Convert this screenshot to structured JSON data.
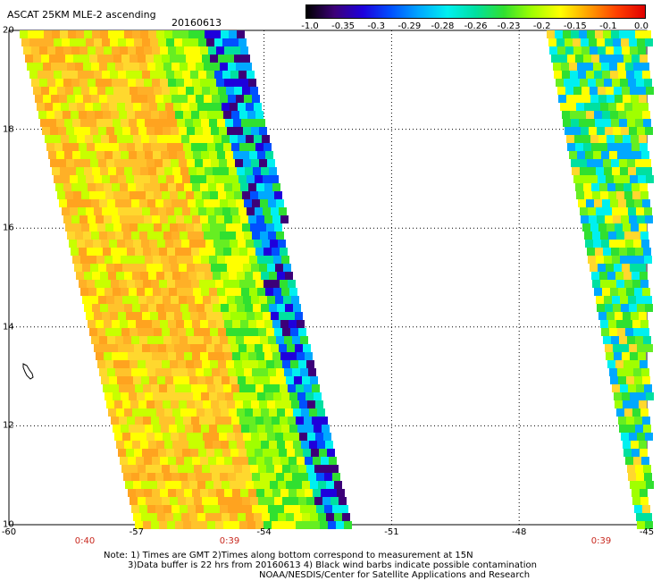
{
  "header": {
    "title": "ASCAT 25KM MLE-2 ascending",
    "date": "20160613"
  },
  "colorbar": {
    "ticks": [
      "-1.0",
      "-0.35",
      "-0.3",
      "-0.29",
      "-0.28",
      "-0.26",
      "-0.23",
      "-0.2",
      "-0.15",
      "-0.1",
      "0.0"
    ],
    "colors": [
      "#000000",
      "#3c0078",
      "#1e00dc",
      "#0050ff",
      "#00a8ff",
      "#00f0f0",
      "#00e0a0",
      "#30e030",
      "#a0ff00",
      "#ffff00",
      "#ffa000",
      "#ff4000",
      "#e00000"
    ]
  },
  "axes": {
    "lat_labels": [
      "20",
      "18",
      "16",
      "14",
      "12",
      "10"
    ],
    "lon_labels": [
      "-60",
      "-57",
      "-54",
      "-51",
      "-48",
      "-45"
    ],
    "time_labels": [
      "0:40",
      "0:39",
      "0:39"
    ]
  },
  "notes": {
    "line1": "Note: 1) Times are GMT 2)Times along bottom correspond to measurement at 15N",
    "line2": "3)Data buffer is 22 hrs from 20160613 4) Black wind barbs indicate possible contamination",
    "line3": "NOAA/NESDIS/Center for Satellite Applications and Research"
  },
  "palette": {
    "swath_west": [
      "#ffa31f",
      "#ffb027",
      "#ffc32b",
      "#ffd82e",
      "#ffff00",
      "#c8ff00",
      "#a0ff00",
      "#66ee22",
      "#30e030"
    ],
    "swath_edge": [
      "#30e030",
      "#00e0a0",
      "#00f0f0",
      "#00a8ff",
      "#0050ff",
      "#1e00dc",
      "#3c0078"
    ],
    "swath_east": [
      "#30e030",
      "#00e0a0",
      "#00f0f0",
      "#66ee22",
      "#a0ff00",
      "#ffff00",
      "#ffd82e",
      "#00a8ff"
    ]
  }
}
